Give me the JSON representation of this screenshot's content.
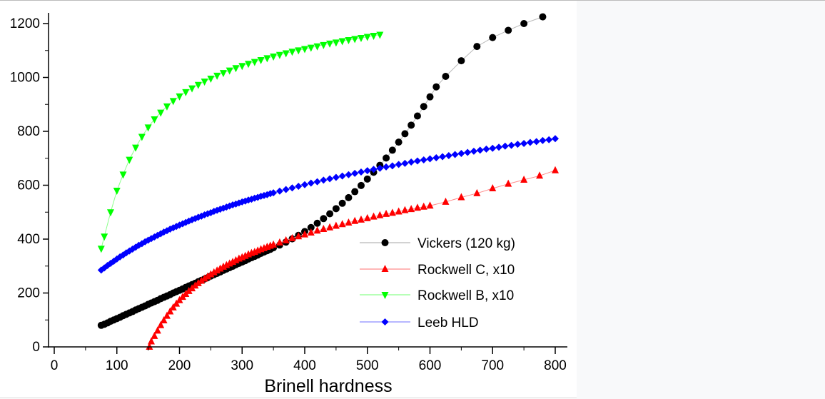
{
  "chart_data": {
    "type": "scatter",
    "title": "",
    "xlabel": "Brinell hardness",
    "ylabel": "",
    "xlim": [
      0,
      810
    ],
    "ylim": [
      0,
      1240
    ],
    "x_ticks": [
      "0",
      "100",
      "200",
      "300",
      "400",
      "500",
      "600",
      "700",
      "800"
    ],
    "y_ticks": [
      "0",
      "200",
      "400",
      "600",
      "800",
      "1000",
      "1200"
    ],
    "grid": false,
    "legend_position": "bottom-right",
    "series": [
      {
        "name": "Vickers (120 kg)",
        "color": "#000000",
        "line_color": "#b8b8b8",
        "marker": "circle",
        "points": [
          [
            75,
            80
          ],
          [
            80,
            84
          ],
          [
            85,
            89
          ],
          [
            90,
            95
          ],
          [
            95,
            100
          ],
          [
            100,
            105
          ],
          [
            105,
            110
          ],
          [
            110,
            116
          ],
          [
            115,
            121
          ],
          [
            120,
            126
          ],
          [
            125,
            131
          ],
          [
            130,
            137
          ],
          [
            135,
            142
          ],
          [
            140,
            147
          ],
          [
            145,
            152
          ],
          [
            150,
            158
          ],
          [
            155,
            163
          ],
          [
            160,
            168
          ],
          [
            165,
            173
          ],
          [
            170,
            179
          ],
          [
            175,
            184
          ],
          [
            180,
            189
          ],
          [
            185,
            194
          ],
          [
            190,
            200
          ],
          [
            195,
            205
          ],
          [
            200,
            210
          ],
          [
            205,
            215
          ],
          [
            210,
            221
          ],
          [
            215,
            226
          ],
          [
            220,
            231
          ],
          [
            225,
            236
          ],
          [
            230,
            242
          ],
          [
            235,
            247
          ],
          [
            240,
            252
          ],
          [
            245,
            257
          ],
          [
            250,
            263
          ],
          [
            255,
            268
          ],
          [
            260,
            273
          ],
          [
            265,
            278
          ],
          [
            270,
            284
          ],
          [
            275,
            289
          ],
          [
            280,
            294
          ],
          [
            285,
            299
          ],
          [
            290,
            305
          ],
          [
            295,
            310
          ],
          [
            300,
            315
          ],
          [
            305,
            320
          ],
          [
            310,
            326
          ],
          [
            315,
            331
          ],
          [
            320,
            336
          ],
          [
            325,
            341
          ],
          [
            330,
            347
          ],
          [
            335,
            352
          ],
          [
            340,
            357
          ],
          [
            345,
            362
          ],
          [
            350,
            368
          ],
          [
            360,
            378
          ],
          [
            370,
            389
          ],
          [
            380,
            401
          ],
          [
            390,
            414
          ],
          [
            400,
            428
          ],
          [
            410,
            443
          ],
          [
            420,
            459
          ],
          [
            430,
            476
          ],
          [
            440,
            494
          ],
          [
            450,
            513
          ],
          [
            460,
            533
          ],
          [
            470,
            554
          ],
          [
            480,
            576
          ],
          [
            490,
            599
          ],
          [
            500,
            623
          ],
          [
            510,
            648
          ],
          [
            520,
            674
          ],
          [
            530,
            701
          ],
          [
            540,
            730
          ],
          [
            550,
            760
          ],
          [
            560,
            791
          ],
          [
            570,
            823
          ],
          [
            580,
            857
          ],
          [
            590,
            892
          ],
          [
            600,
            928
          ],
          [
            610,
            965
          ],
          [
            625,
            1004
          ],
          [
            650,
            1062
          ],
          [
            675,
            1115
          ],
          [
            700,
            1148
          ],
          [
            725,
            1175
          ],
          [
            750,
            1200
          ],
          [
            780,
            1225
          ]
        ]
      },
      {
        "name": "Rockwell C, x10",
        "color": "#ff0000",
        "line_color": "#ff8c8c",
        "marker": "triangle-up",
        "points": [
          [
            152,
            0
          ],
          [
            155,
            20
          ],
          [
            160,
            40
          ],
          [
            165,
            60
          ],
          [
            170,
            80
          ],
          [
            175,
            98
          ],
          [
            180,
            115
          ],
          [
            185,
            131
          ],
          [
            190,
            146
          ],
          [
            195,
            160
          ],
          [
            200,
            173
          ],
          [
            205,
            185
          ],
          [
            210,
            196
          ],
          [
            215,
            207
          ],
          [
            220,
            217
          ],
          [
            225,
            227
          ],
          [
            230,
            236
          ],
          [
            235,
            245
          ],
          [
            240,
            253
          ],
          [
            245,
            261
          ],
          [
            250,
            269
          ],
          [
            255,
            276
          ],
          [
            260,
            283
          ],
          [
            265,
            290
          ],
          [
            270,
            297
          ],
          [
            275,
            303
          ],
          [
            280,
            309
          ],
          [
            285,
            315
          ],
          [
            290,
            321
          ],
          [
            295,
            327
          ],
          [
            300,
            332
          ],
          [
            305,
            337
          ],
          [
            310,
            343
          ],
          [
            315,
            348
          ],
          [
            320,
            352
          ],
          [
            325,
            357
          ],
          [
            330,
            362
          ],
          [
            335,
            366
          ],
          [
            340,
            371
          ],
          [
            345,
            375
          ],
          [
            350,
            379
          ],
          [
            360,
            387
          ],
          [
            370,
            395
          ],
          [
            380,
            403
          ],
          [
            390,
            410
          ],
          [
            400,
            417
          ],
          [
            410,
            424
          ],
          [
            420,
            431
          ],
          [
            430,
            437
          ],
          [
            440,
            443
          ],
          [
            450,
            449
          ],
          [
            460,
            455
          ],
          [
            470,
            461
          ],
          [
            480,
            467
          ],
          [
            490,
            472
          ],
          [
            500,
            477
          ],
          [
            510,
            483
          ],
          [
            520,
            488
          ],
          [
            530,
            493
          ],
          [
            540,
            497
          ],
          [
            550,
            502
          ],
          [
            560,
            507
          ],
          [
            570,
            511
          ],
          [
            580,
            516
          ],
          [
            590,
            520
          ],
          [
            600,
            524
          ],
          [
            625,
            538
          ],
          [
            650,
            555
          ],
          [
            675,
            570
          ],
          [
            700,
            588
          ],
          [
            725,
            605
          ],
          [
            750,
            620
          ],
          [
            775,
            635
          ],
          [
            800,
            655
          ]
        ]
      },
      {
        "name": "Rockwell B, x10",
        "color": "#00ff00",
        "line_color": "#8cff8c",
        "marker": "triangle-down",
        "points": [
          [
            75,
            365
          ],
          [
            80,
            410
          ],
          [
            90,
            500
          ],
          [
            100,
            580
          ],
          [
            110,
            640
          ],
          [
            120,
            695
          ],
          [
            130,
            740
          ],
          [
            140,
            780
          ],
          [
            150,
            815
          ],
          [
            160,
            845
          ],
          [
            170,
            870
          ],
          [
            180,
            893
          ],
          [
            190,
            913
          ],
          [
            200,
            930
          ],
          [
            210,
            946
          ],
          [
            220,
            960
          ],
          [
            230,
            973
          ],
          [
            240,
            985
          ],
          [
            250,
            996
          ],
          [
            260,
            1007
          ],
          [
            270,
            1017
          ],
          [
            280,
            1026
          ],
          [
            290,
            1035
          ],
          [
            300,
            1043
          ],
          [
            310,
            1051
          ],
          [
            320,
            1058
          ],
          [
            330,
            1065
          ],
          [
            340,
            1072
          ],
          [
            350,
            1078
          ],
          [
            360,
            1084
          ],
          [
            370,
            1090
          ],
          [
            380,
            1096
          ],
          [
            390,
            1101
          ],
          [
            400,
            1106
          ],
          [
            410,
            1111
          ],
          [
            420,
            1116
          ],
          [
            430,
            1121
          ],
          [
            440,
            1126
          ],
          [
            450,
            1130
          ],
          [
            460,
            1135
          ],
          [
            470,
            1139
          ],
          [
            480,
            1143
          ],
          [
            490,
            1147
          ],
          [
            500,
            1151
          ],
          [
            510,
            1155
          ],
          [
            520,
            1159
          ]
        ]
      },
      {
        "name": "Leeb HLD",
        "color": "#0000ff",
        "line_color": "#8c8cff",
        "marker": "diamond",
        "points": [
          [
            75,
            285
          ],
          [
            80,
            293
          ],
          [
            85,
            302
          ],
          [
            90,
            310
          ],
          [
            95,
            318
          ],
          [
            100,
            326
          ],
          [
            105,
            334
          ],
          [
            110,
            341
          ],
          [
            115,
            349
          ],
          [
            120,
            356
          ],
          [
            125,
            363
          ],
          [
            130,
            370
          ],
          [
            135,
            377
          ],
          [
            140,
            383
          ],
          [
            145,
            390
          ],
          [
            150,
            396
          ],
          [
            155,
            402
          ],
          [
            160,
            408
          ],
          [
            165,
            414
          ],
          [
            170,
            420
          ],
          [
            175,
            426
          ],
          [
            180,
            431
          ],
          [
            185,
            437
          ],
          [
            190,
            442
          ],
          [
            195,
            447
          ],
          [
            200,
            452
          ],
          [
            205,
            457
          ],
          [
            210,
            462
          ],
          [
            215,
            467
          ],
          [
            220,
            472
          ],
          [
            225,
            476
          ],
          [
            230,
            481
          ],
          [
            235,
            485
          ],
          [
            240,
            490
          ],
          [
            245,
            494
          ],
          [
            250,
            498
          ],
          [
            255,
            503
          ],
          [
            260,
            507
          ],
          [
            265,
            511
          ],
          [
            270,
            515
          ],
          [
            275,
            519
          ],
          [
            280,
            523
          ],
          [
            285,
            527
          ],
          [
            290,
            530
          ],
          [
            295,
            534
          ],
          [
            300,
            538
          ],
          [
            305,
            541
          ],
          [
            310,
            545
          ],
          [
            315,
            548
          ],
          [
            320,
            552
          ],
          [
            325,
            555
          ],
          [
            330,
            559
          ],
          [
            335,
            562
          ],
          [
            340,
            565
          ],
          [
            345,
            569
          ],
          [
            350,
            572
          ],
          [
            360,
            578
          ],
          [
            370,
            584
          ],
          [
            380,
            590
          ],
          [
            390,
            596
          ],
          [
            400,
            602
          ],
          [
            410,
            608
          ],
          [
            420,
            613
          ],
          [
            430,
            619
          ],
          [
            440,
            624
          ],
          [
            450,
            629
          ],
          [
            460,
            634
          ],
          [
            470,
            639
          ],
          [
            480,
            644
          ],
          [
            490,
            649
          ],
          [
            500,
            654
          ],
          [
            510,
            659
          ],
          [
            520,
            663
          ],
          [
            530,
            668
          ],
          [
            540,
            672
          ],
          [
            550,
            677
          ],
          [
            560,
            681
          ],
          [
            570,
            686
          ],
          [
            580,
            690
          ],
          [
            590,
            694
          ],
          [
            600,
            698
          ],
          [
            610,
            702
          ],
          [
            620,
            706
          ],
          [
            630,
            710
          ],
          [
            640,
            714
          ],
          [
            650,
            718
          ],
          [
            660,
            722
          ],
          [
            670,
            726
          ],
          [
            680,
            730
          ],
          [
            690,
            734
          ],
          [
            700,
            737
          ],
          [
            710,
            741
          ],
          [
            720,
            745
          ],
          [
            730,
            748
          ],
          [
            740,
            752
          ],
          [
            750,
            755
          ],
          [
            760,
            759
          ],
          [
            770,
            762
          ],
          [
            780,
            766
          ],
          [
            790,
            769
          ],
          [
            800,
            773
          ]
        ]
      }
    ]
  }
}
